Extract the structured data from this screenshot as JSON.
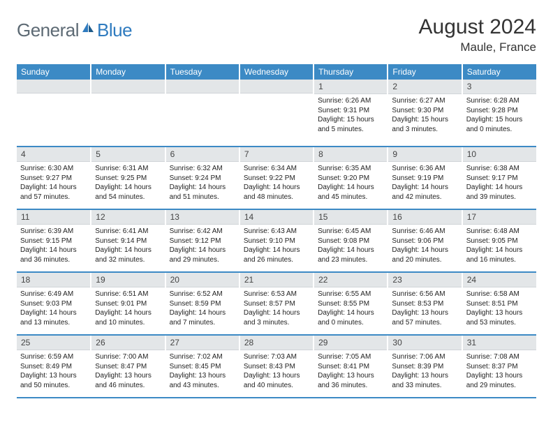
{
  "brand": {
    "general": "General",
    "blue": "Blue"
  },
  "title": "August 2024",
  "location": "Maule, France",
  "colors": {
    "header_bg": "#3c8ac5",
    "header_text": "#ffffff",
    "daynum_bg": "#e3e6e8",
    "border_bottom": "#3c8ac5",
    "logo_gray": "#5d6a74",
    "logo_blue": "#2f7bbf"
  },
  "weekdays": [
    "Sunday",
    "Monday",
    "Tuesday",
    "Wednesday",
    "Thursday",
    "Friday",
    "Saturday"
  ],
  "grid": [
    [
      {
        "n": "",
        "lines": []
      },
      {
        "n": "",
        "lines": []
      },
      {
        "n": "",
        "lines": []
      },
      {
        "n": "",
        "lines": []
      },
      {
        "n": "1",
        "lines": [
          "Sunrise: 6:26 AM",
          "Sunset: 9:31 PM",
          "Daylight: 15 hours",
          "and 5 minutes."
        ]
      },
      {
        "n": "2",
        "lines": [
          "Sunrise: 6:27 AM",
          "Sunset: 9:30 PM",
          "Daylight: 15 hours",
          "and 3 minutes."
        ]
      },
      {
        "n": "3",
        "lines": [
          "Sunrise: 6:28 AM",
          "Sunset: 9:28 PM",
          "Daylight: 15 hours",
          "and 0 minutes."
        ]
      }
    ],
    [
      {
        "n": "4",
        "lines": [
          "Sunrise: 6:30 AM",
          "Sunset: 9:27 PM",
          "Daylight: 14 hours",
          "and 57 minutes."
        ]
      },
      {
        "n": "5",
        "lines": [
          "Sunrise: 6:31 AM",
          "Sunset: 9:25 PM",
          "Daylight: 14 hours",
          "and 54 minutes."
        ]
      },
      {
        "n": "6",
        "lines": [
          "Sunrise: 6:32 AM",
          "Sunset: 9:24 PM",
          "Daylight: 14 hours",
          "and 51 minutes."
        ]
      },
      {
        "n": "7",
        "lines": [
          "Sunrise: 6:34 AM",
          "Sunset: 9:22 PM",
          "Daylight: 14 hours",
          "and 48 minutes."
        ]
      },
      {
        "n": "8",
        "lines": [
          "Sunrise: 6:35 AM",
          "Sunset: 9:20 PM",
          "Daylight: 14 hours",
          "and 45 minutes."
        ]
      },
      {
        "n": "9",
        "lines": [
          "Sunrise: 6:36 AM",
          "Sunset: 9:19 PM",
          "Daylight: 14 hours",
          "and 42 minutes."
        ]
      },
      {
        "n": "10",
        "lines": [
          "Sunrise: 6:38 AM",
          "Sunset: 9:17 PM",
          "Daylight: 14 hours",
          "and 39 minutes."
        ]
      }
    ],
    [
      {
        "n": "11",
        "lines": [
          "Sunrise: 6:39 AM",
          "Sunset: 9:15 PM",
          "Daylight: 14 hours",
          "and 36 minutes."
        ]
      },
      {
        "n": "12",
        "lines": [
          "Sunrise: 6:41 AM",
          "Sunset: 9:14 PM",
          "Daylight: 14 hours",
          "and 32 minutes."
        ]
      },
      {
        "n": "13",
        "lines": [
          "Sunrise: 6:42 AM",
          "Sunset: 9:12 PM",
          "Daylight: 14 hours",
          "and 29 minutes."
        ]
      },
      {
        "n": "14",
        "lines": [
          "Sunrise: 6:43 AM",
          "Sunset: 9:10 PM",
          "Daylight: 14 hours",
          "and 26 minutes."
        ]
      },
      {
        "n": "15",
        "lines": [
          "Sunrise: 6:45 AM",
          "Sunset: 9:08 PM",
          "Daylight: 14 hours",
          "and 23 minutes."
        ]
      },
      {
        "n": "16",
        "lines": [
          "Sunrise: 6:46 AM",
          "Sunset: 9:06 PM",
          "Daylight: 14 hours",
          "and 20 minutes."
        ]
      },
      {
        "n": "17",
        "lines": [
          "Sunrise: 6:48 AM",
          "Sunset: 9:05 PM",
          "Daylight: 14 hours",
          "and 16 minutes."
        ]
      }
    ],
    [
      {
        "n": "18",
        "lines": [
          "Sunrise: 6:49 AM",
          "Sunset: 9:03 PM",
          "Daylight: 14 hours",
          "and 13 minutes."
        ]
      },
      {
        "n": "19",
        "lines": [
          "Sunrise: 6:51 AM",
          "Sunset: 9:01 PM",
          "Daylight: 14 hours",
          "and 10 minutes."
        ]
      },
      {
        "n": "20",
        "lines": [
          "Sunrise: 6:52 AM",
          "Sunset: 8:59 PM",
          "Daylight: 14 hours",
          "and 7 minutes."
        ]
      },
      {
        "n": "21",
        "lines": [
          "Sunrise: 6:53 AM",
          "Sunset: 8:57 PM",
          "Daylight: 14 hours",
          "and 3 minutes."
        ]
      },
      {
        "n": "22",
        "lines": [
          "Sunrise: 6:55 AM",
          "Sunset: 8:55 PM",
          "Daylight: 14 hours",
          "and 0 minutes."
        ]
      },
      {
        "n": "23",
        "lines": [
          "Sunrise: 6:56 AM",
          "Sunset: 8:53 PM",
          "Daylight: 13 hours",
          "and 57 minutes."
        ]
      },
      {
        "n": "24",
        "lines": [
          "Sunrise: 6:58 AM",
          "Sunset: 8:51 PM",
          "Daylight: 13 hours",
          "and 53 minutes."
        ]
      }
    ],
    [
      {
        "n": "25",
        "lines": [
          "Sunrise: 6:59 AM",
          "Sunset: 8:49 PM",
          "Daylight: 13 hours",
          "and 50 minutes."
        ]
      },
      {
        "n": "26",
        "lines": [
          "Sunrise: 7:00 AM",
          "Sunset: 8:47 PM",
          "Daylight: 13 hours",
          "and 46 minutes."
        ]
      },
      {
        "n": "27",
        "lines": [
          "Sunrise: 7:02 AM",
          "Sunset: 8:45 PM",
          "Daylight: 13 hours",
          "and 43 minutes."
        ]
      },
      {
        "n": "28",
        "lines": [
          "Sunrise: 7:03 AM",
          "Sunset: 8:43 PM",
          "Daylight: 13 hours",
          "and 40 minutes."
        ]
      },
      {
        "n": "29",
        "lines": [
          "Sunrise: 7:05 AM",
          "Sunset: 8:41 PM",
          "Daylight: 13 hours",
          "and 36 minutes."
        ]
      },
      {
        "n": "30",
        "lines": [
          "Sunrise: 7:06 AM",
          "Sunset: 8:39 PM",
          "Daylight: 13 hours",
          "and 33 minutes."
        ]
      },
      {
        "n": "31",
        "lines": [
          "Sunrise: 7:08 AM",
          "Sunset: 8:37 PM",
          "Daylight: 13 hours",
          "and 29 minutes."
        ]
      }
    ]
  ]
}
